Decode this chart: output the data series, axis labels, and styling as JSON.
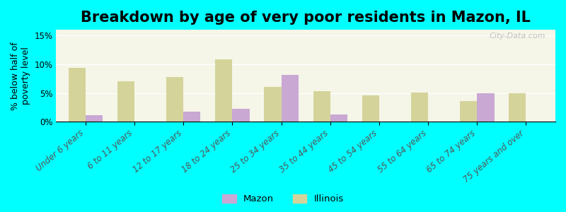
{
  "title": "Breakdown by age of very poor residents in Mazon, IL",
  "ylabel": "% below half of\npoverty level",
  "background_color": "#00FFFF",
  "plot_bg_color": "#f5f5e8",
  "categories": [
    "Under 6 years",
    "6 to 11 years",
    "12 to 17 years",
    "18 to 24 years",
    "25 to 34 years",
    "35 to 44 years",
    "45 to 54 years",
    "55 to 64 years",
    "65 to 74 years",
    "75 years and over"
  ],
  "mazon_values": [
    1.2,
    0,
    1.8,
    2.2,
    8.1,
    1.3,
    0,
    0,
    5.0,
    0
  ],
  "illinois_values": [
    9.4,
    7.1,
    7.8,
    10.8,
    6.0,
    5.3,
    4.6,
    5.1,
    3.6,
    5.0
  ],
  "mazon_color": "#c9a8d4",
  "illinois_color": "#d4d49a",
  "ylim": [
    0,
    16
  ],
  "yticks": [
    0,
    5,
    10,
    15
  ],
  "ytick_labels": [
    "0%",
    "5%",
    "10%",
    "15%"
  ],
  "bar_width": 0.35,
  "watermark": "City-Data.com",
  "legend_mazon": "Mazon",
  "legend_illinois": "Illinois",
  "title_fontsize": 15,
  "axis_label_fontsize": 9,
  "tick_fontsize": 8.5
}
